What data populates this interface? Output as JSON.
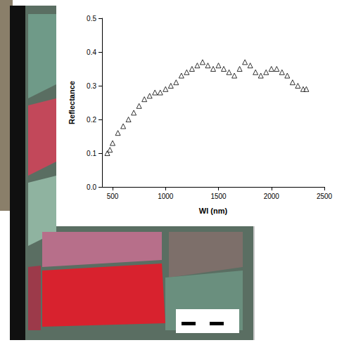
{
  "chart_data": {
    "type": "scatter",
    "x_label": "Wl (nm)",
    "y_label": "Reflectance",
    "x": [
      450,
      475,
      500,
      550,
      600,
      650,
      700,
      750,
      800,
      850,
      900,
      950,
      1000,
      1050,
      1100,
      1150,
      1200,
      1250,
      1300,
      1350,
      1400,
      1450,
      1500,
      1550,
      1600,
      1650,
      1700,
      1750,
      1800,
      1850,
      1900,
      1950,
      2000,
      2050,
      2100,
      2150,
      2200,
      2250,
      2300,
      2330
    ],
    "values": [
      0.1,
      0.11,
      0.13,
      0.16,
      0.18,
      0.2,
      0.22,
      0.24,
      0.26,
      0.27,
      0.28,
      0.28,
      0.29,
      0.3,
      0.31,
      0.33,
      0.34,
      0.35,
      0.36,
      0.37,
      0.36,
      0.35,
      0.36,
      0.35,
      0.34,
      0.33,
      0.35,
      0.37,
      0.36,
      0.34,
      0.33,
      0.34,
      0.35,
      0.35,
      0.34,
      0.33,
      0.31,
      0.3,
      0.29,
      0.29
    ],
    "color": "#000000",
    "marker": "triangle",
    "xlim": [
      400,
      2500
    ],
    "xticks": [
      500,
      1000,
      1500,
      2000,
      2500
    ],
    "ylim": [
      0,
      0.5
    ],
    "yticks": [
      {
        "value": 0,
        "label": "0.0"
      },
      0.1,
      0.2,
      0.3,
      0.4,
      0.5
    ],
    "grid": false
  }
}
